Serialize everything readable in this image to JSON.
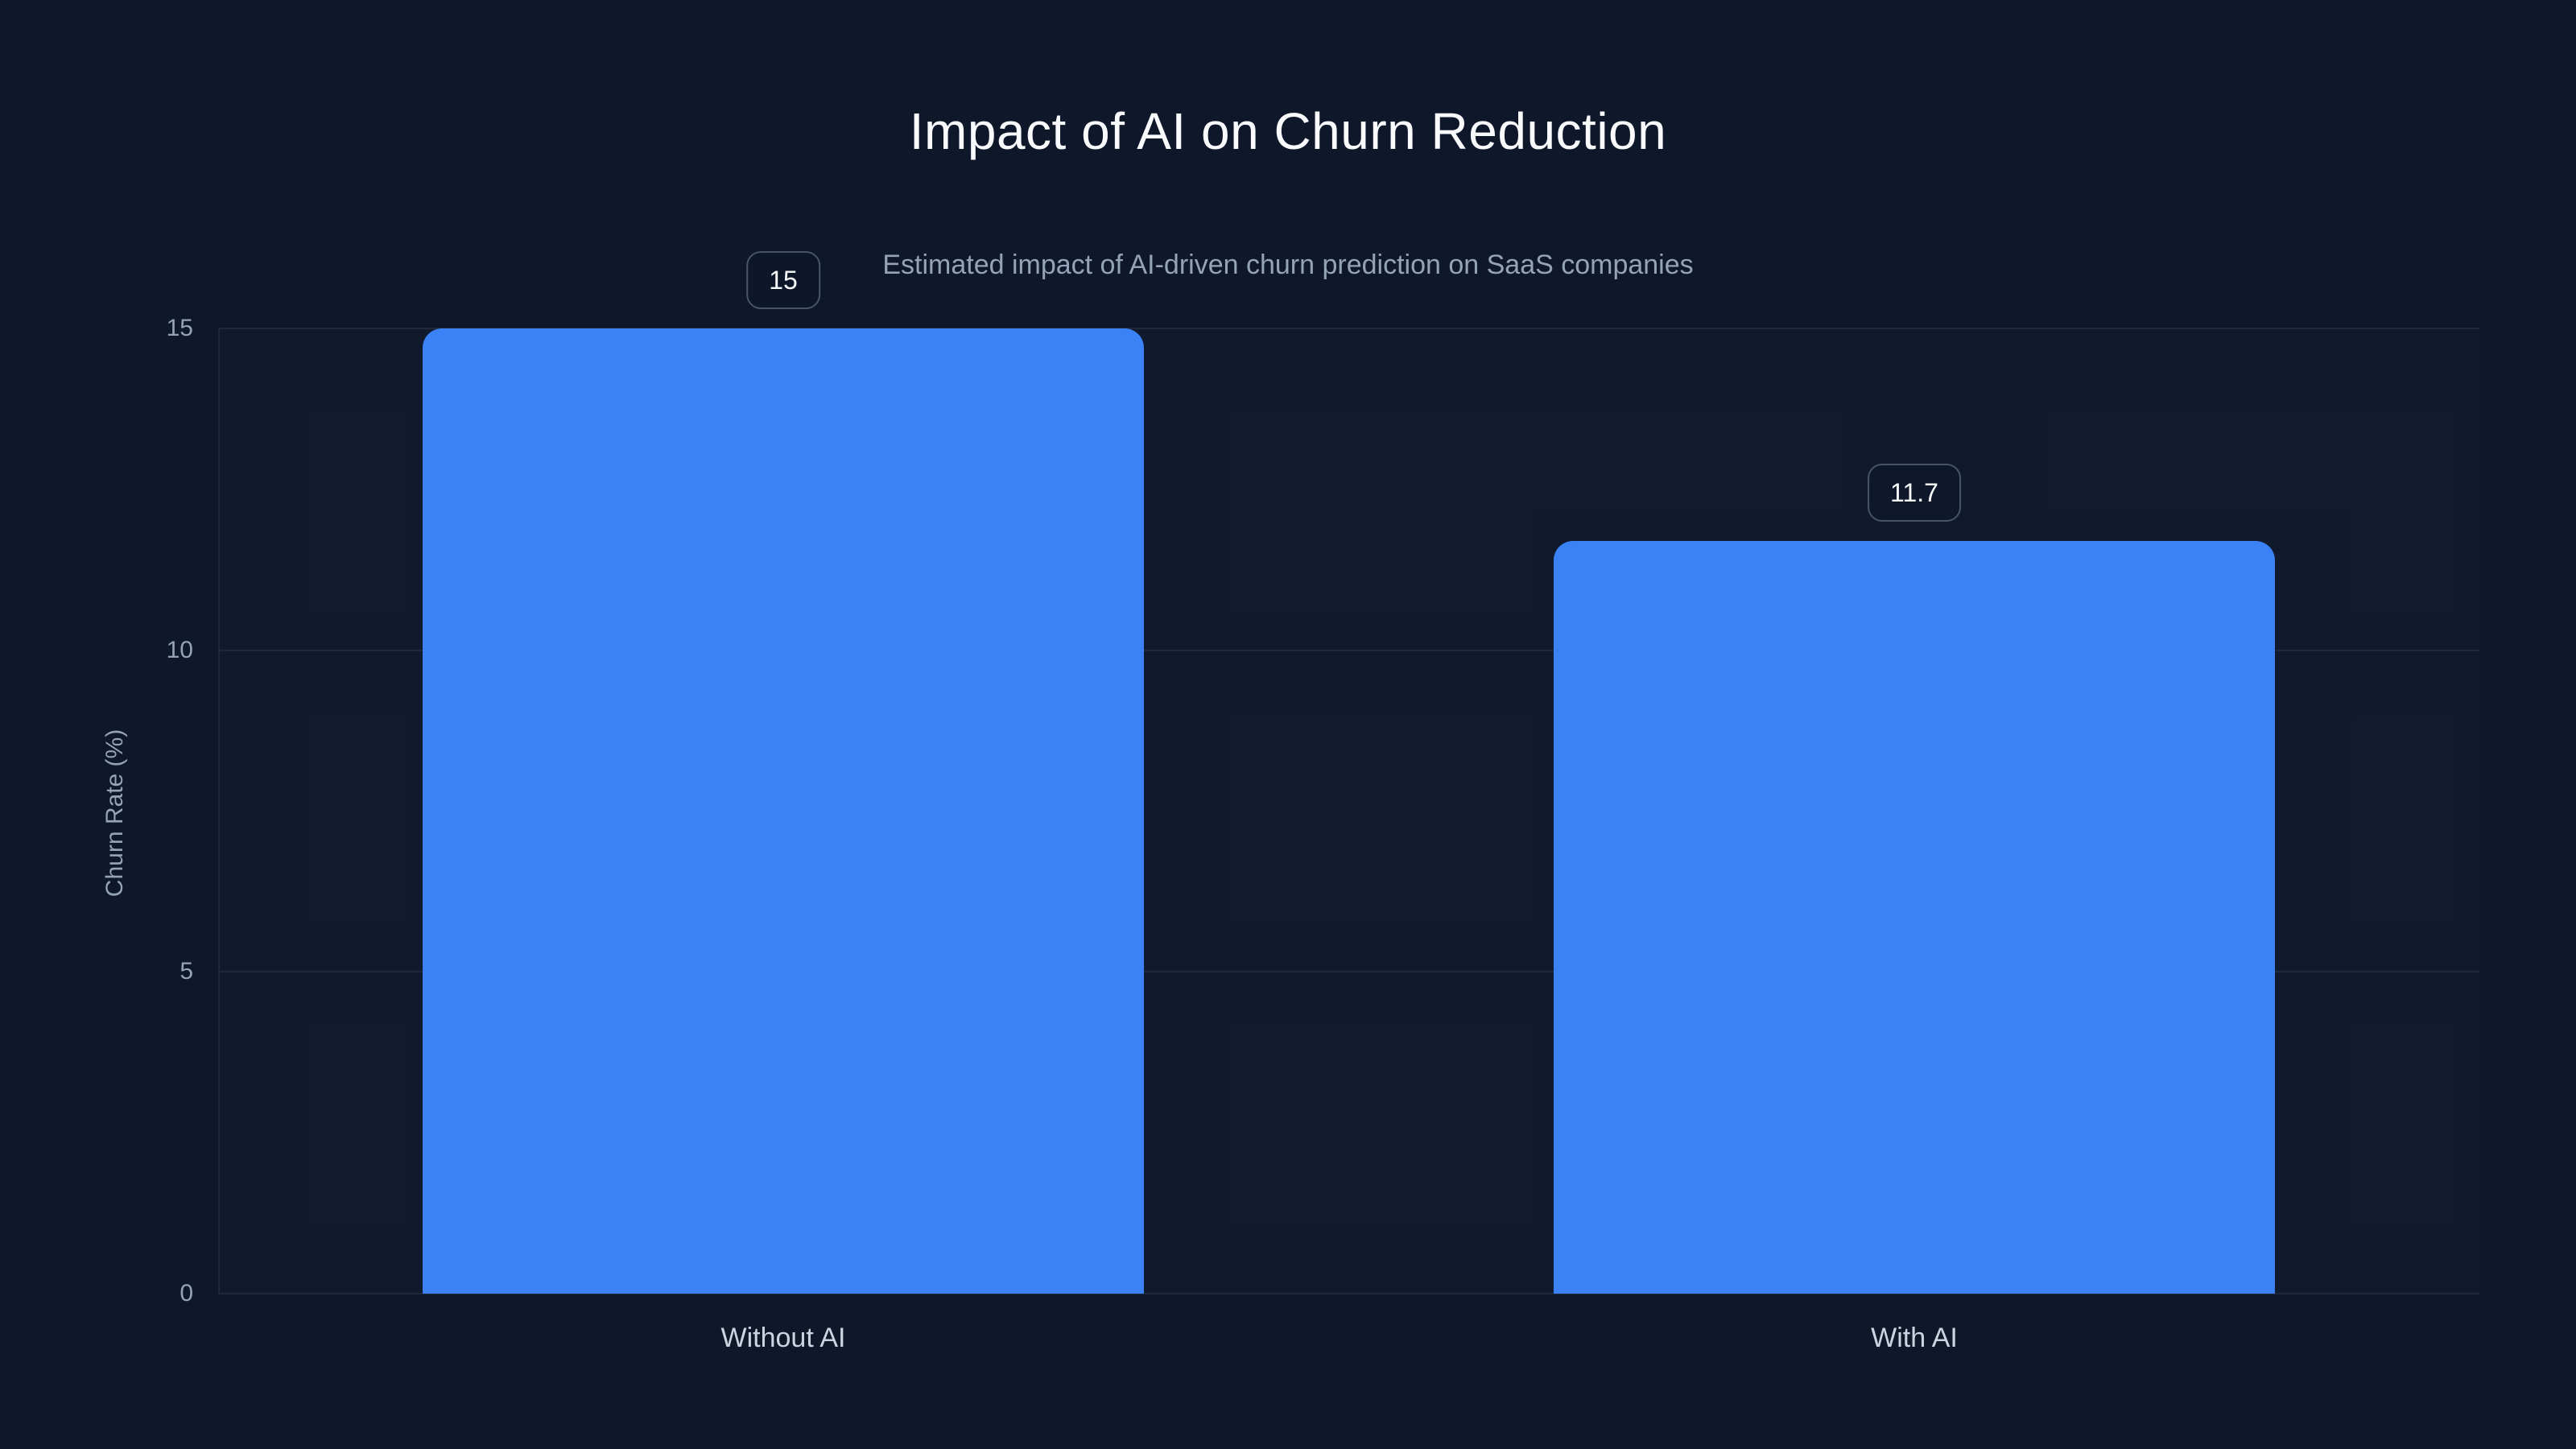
{
  "page": {
    "background_color": "#0f172a"
  },
  "chart_data": {
    "type": "bar",
    "title": "Impact of AI on Churn Reduction",
    "subtitle": "Estimated impact of AI-driven churn prediction on SaaS companies",
    "categories": [
      "Without AI",
      "With AI"
    ],
    "values": [
      15,
      11.7
    ],
    "value_labels": [
      "15",
      "11.7"
    ],
    "xlabel": "",
    "ylabel": "Churn Rate (%)",
    "yticks": [
      "0",
      "5",
      "10",
      "15"
    ],
    "ytick_values": [
      0,
      5,
      10,
      15
    ],
    "ylim": [
      0,
      15
    ],
    "grid": "horizontal-only",
    "legend_position": "none",
    "colors": {
      "bar_fill": "#3b82f6",
      "background": "#0f172a",
      "gridline": "#1e293b",
      "axis_line": "#1e293b",
      "tick_text": "#94a3b8",
      "category_text": "#cbd5e1",
      "title_text": "#f8fafc",
      "subtitle_text": "#94a3b8",
      "value_badge_border": "#475569",
      "value_badge_text": "#f8fafc"
    }
  }
}
